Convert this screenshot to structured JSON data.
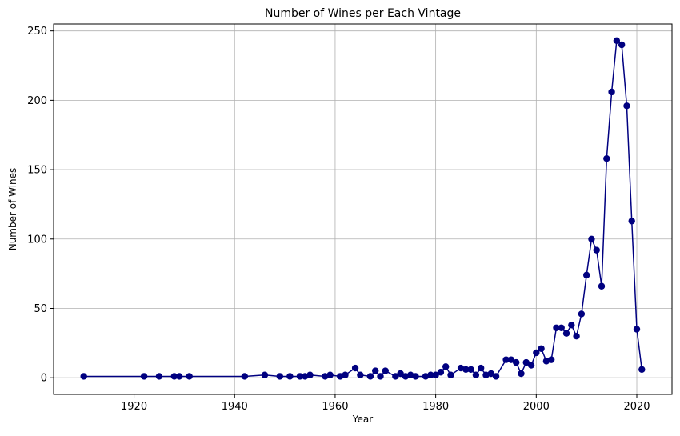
{
  "chart_data": {
    "type": "line",
    "title": "Number of Wines per Each Vintage",
    "xlabel": "Year",
    "ylabel": "Number of Wines",
    "xlim": [
      1904,
      2027
    ],
    "ylim": [
      -12,
      255
    ],
    "xticks": [
      1920,
      1940,
      1960,
      1980,
      2000,
      2020
    ],
    "yticks": [
      0,
      50,
      100,
      150,
      200,
      250
    ],
    "grid": true,
    "color": "#000080",
    "series": [
      {
        "x": [
          1910,
          1922,
          1925,
          1928,
          1929,
          1931,
          1942,
          1946,
          1949,
          1951,
          1953,
          1954,
          1955,
          1958,
          1959,
          1961,
          1962,
          1964,
          1965,
          1967,
          1968,
          1969,
          1970,
          1972,
          1973,
          1974,
          1975,
          1976,
          1978,
          1979,
          1980,
          1981,
          1982,
          1983,
          1985,
          1986,
          1987,
          1988,
          1989,
          1990,
          1991,
          1992,
          1994,
          1995,
          1996,
          1997,
          1998,
          1999,
          2000,
          2001,
          2002,
          2003,
          2004,
          2005,
          2006,
          2007,
          2008,
          2009,
          2010,
          2011,
          2012,
          2013,
          2014,
          2015,
          2016,
          2017,
          2018,
          2019,
          2020,
          2021
        ],
        "y": [
          1,
          1,
          1,
          1,
          1,
          1,
          1,
          2,
          1,
          1,
          1,
          1,
          2,
          1,
          2,
          1,
          2,
          7,
          2,
          1,
          5,
          1,
          5,
          1,
          3,
          1,
          2,
          1,
          1,
          2,
          2,
          4,
          8,
          2,
          7,
          6,
          6,
          2,
          7,
          2,
          3,
          1,
          13,
          13,
          11,
          3,
          11,
          9,
          18,
          21,
          12,
          13,
          36,
          36,
          32,
          38,
          30,
          46,
          74,
          100,
          92,
          66,
          158,
          206,
          243,
          240,
          196,
          113,
          35,
          6
        ]
      }
    ]
  }
}
